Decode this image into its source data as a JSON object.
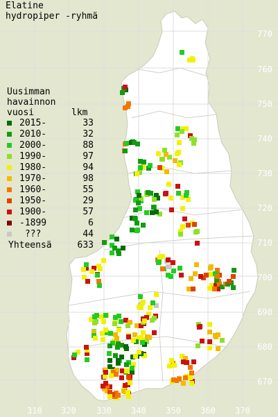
{
  "title": {
    "line1": "Elatine",
    "line2": "hydropiper -ryhmä"
  },
  "legend": {
    "heading": [
      "Uusimman",
      "havainnon",
      "vuosi"
    ],
    "count_heading": "lkm",
    "items": [
      {
        "label": "2015-",
        "count": "33",
        "color": "#0a6a0a"
      },
      {
        "label": "2010-",
        "count": "32",
        "color": "#139a13"
      },
      {
        "label": "2000-",
        "count": "88",
        "color": "#22cc22"
      },
      {
        "label": "1990-",
        "count": "97",
        "color": "#8fe02a"
      },
      {
        "label": "1980-",
        "count": "94",
        "color": "#f2f200"
      },
      {
        "label": "1970-",
        "count": "98",
        "color": "#f2bb00"
      },
      {
        "label": "1960-",
        "count": "55",
        "color": "#f27700"
      },
      {
        "label": "1950-",
        "count": "29",
        "color": "#e04400"
      },
      {
        "label": "1900-",
        "count": "57",
        "color": "#cc1111"
      },
      {
        "label": "-1899",
        "count": "6",
        "color": "#8a0000"
      },
      {
        "label": " ???",
        "count": "44",
        "color": "#c8c8c8"
      }
    ],
    "total_label": "Yhteensä",
    "total_count": "633"
  },
  "axes": {
    "x_ticks": [
      "310",
      "320",
      "330",
      "340",
      "350",
      "360",
      "370"
    ],
    "y_ticks": [
      "770",
      "760",
      "750",
      "740",
      "730",
      "720",
      "710",
      "700",
      "690",
      "680",
      "670"
    ]
  },
  "colors": {
    "background": "#e3e7cf",
    "land": "#ffffff",
    "border": "#c9cbb8"
  }
}
